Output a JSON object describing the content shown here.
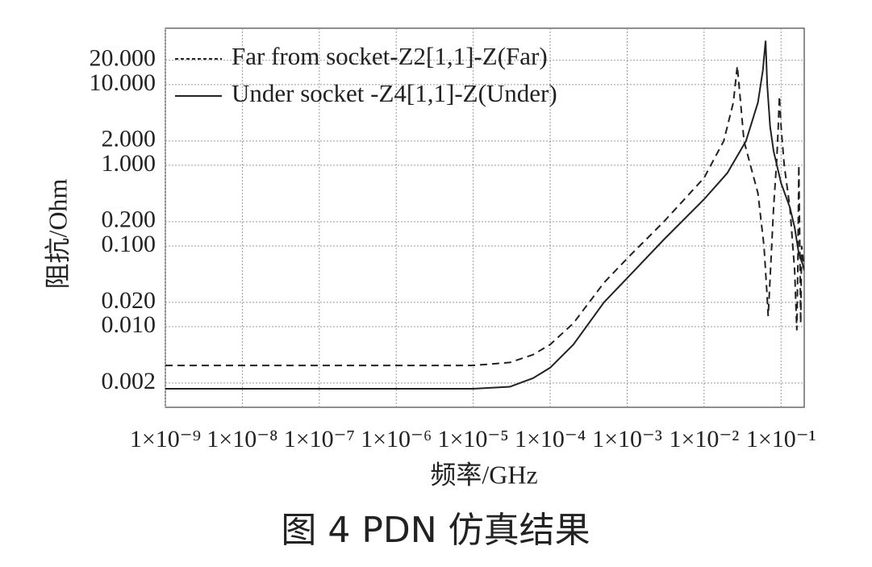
{
  "chart_data": {
    "type": "line",
    "caption": "图 4   PDN 仿真结果",
    "x_label": "频率/GHz",
    "y_label": "阻抗/Ohm",
    "xscale": "log",
    "yscale": "log",
    "grid": true,
    "legend": "upper left",
    "xlim": [
      1e-09,
      0.2
    ],
    "ylim": [
      0.001,
      50
    ],
    "xticks": [
      {
        "value": 1e-09,
        "label": "1×10⁻⁹"
      },
      {
        "value": 1e-08,
        "label": "1×10⁻⁸"
      },
      {
        "value": 1e-07,
        "label": "1×10⁻⁷"
      },
      {
        "value": 1e-06,
        "label": "1×10⁻⁶"
      },
      {
        "value": 1e-05,
        "label": "1×10⁻⁵"
      },
      {
        "value": 0.0001,
        "label": "1×10⁻⁴"
      },
      {
        "value": 0.001,
        "label": "1×10⁻³"
      },
      {
        "value": 0.01,
        "label": "1×10⁻²"
      },
      {
        "value": 0.1,
        "label": "1×10⁻¹"
      }
    ],
    "yticks": [
      {
        "value": 20,
        "label": "20.000"
      },
      {
        "value": 10,
        "label": "10.000"
      },
      {
        "value": 2,
        "label": "2.000"
      },
      {
        "value": 1,
        "label": "1.000"
      },
      {
        "value": 0.2,
        "label": "0.200"
      },
      {
        "value": 0.1,
        "label": "0.100"
      },
      {
        "value": 0.02,
        "label": "0.020"
      },
      {
        "value": 0.01,
        "label": "0.010"
      },
      {
        "value": 0.002,
        "label": "0.002"
      }
    ],
    "series": [
      {
        "name": "Far from socket-Z2[1,1]-Z(Far)",
        "color": "#222222",
        "linestyle": "dashed",
        "x": [
          1e-09,
          1e-05,
          3e-05,
          6e-05,
          0.0001,
          0.0002,
          0.0005,
          0.001,
          0.003,
          0.01,
          0.018,
          0.024,
          0.027,
          0.029,
          0.033,
          0.04,
          0.05,
          0.06,
          0.065,
          0.068,
          0.072,
          0.08,
          0.088,
          0.092,
          0.095,
          0.1,
          0.11,
          0.13,
          0.15,
          0.16,
          0.165,
          0.17,
          0.175,
          0.18,
          0.185,
          0.2
        ],
        "values": [
          0.0033,
          0.0033,
          0.0036,
          0.0045,
          0.006,
          0.011,
          0.035,
          0.07,
          0.2,
          0.7,
          2,
          6,
          17,
          8,
          2,
          1,
          0.45,
          0.1,
          0.03,
          0.0135,
          0.04,
          0.3,
          1.2,
          3,
          7.2,
          3,
          1,
          0.3,
          0.05,
          0.009,
          0.05,
          1,
          0.1,
          0.011,
          0.1,
          0.05
        ]
      },
      {
        "name": "Under socket -Z4[1,1]-Z(Under)",
        "color": "#222222",
        "linestyle": "solid",
        "x": [
          1e-09,
          1e-05,
          3e-05,
          6e-05,
          0.0001,
          0.0002,
          0.0005,
          0.001,
          0.003,
          0.01,
          0.02,
          0.035,
          0.05,
          0.058,
          0.063,
          0.066,
          0.072,
          0.08,
          0.1,
          0.13,
          0.15,
          0.17,
          0.19,
          0.2
        ],
        "values": [
          0.0017,
          0.0017,
          0.0018,
          0.0023,
          0.0031,
          0.006,
          0.02,
          0.04,
          0.12,
          0.38,
          0.8,
          2,
          6,
          15,
          35,
          10,
          3,
          1.5,
          0.6,
          0.3,
          0.17,
          0.08,
          0.06,
          0.05
        ]
      }
    ]
  }
}
